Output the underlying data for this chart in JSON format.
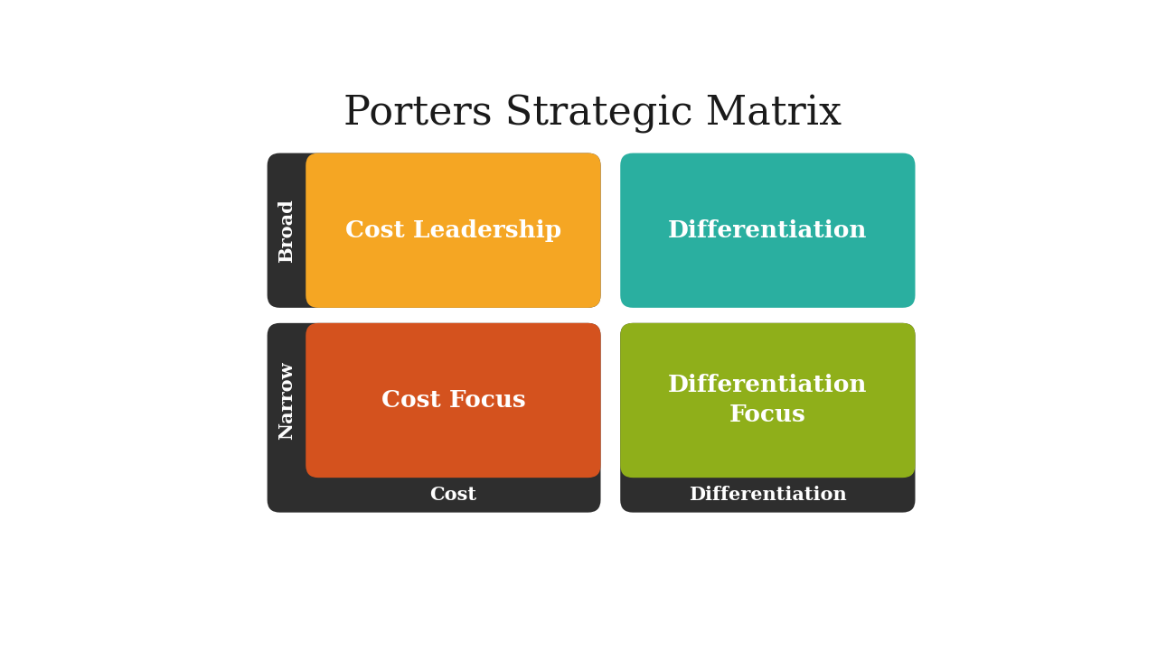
{
  "title": "Porters Strategic Matrix",
  "title_fontsize": 32,
  "title_font": "serif",
  "background_color": "#ffffff",
  "cells": [
    {
      "label": "Cost Leadership",
      "color": "#F5A623",
      "text_color": "#ffffff",
      "row": 0,
      "col": 0
    },
    {
      "label": "Differentiation",
      "color": "#2AAFA0",
      "text_color": "#ffffff",
      "row": 0,
      "col": 1
    },
    {
      "label": "Cost Focus",
      "color": "#D4521E",
      "text_color": "#ffffff",
      "row": 1,
      "col": 0
    },
    {
      "label": "Differentiation\nFocus",
      "color": "#8FAF1A",
      "text_color": "#ffffff",
      "row": 1,
      "col": 1
    }
  ],
  "row_labels": [
    "Broad",
    "Narrow"
  ],
  "col_labels": [
    "Cost",
    "Differentiation"
  ],
  "label_bg_color": "#2E2E2E",
  "label_text_color": "#ffffff",
  "label_fontsize": 15,
  "cell_fontsize": 19,
  "cell_font": "serif",
  "title_color": "#1a1a1a"
}
